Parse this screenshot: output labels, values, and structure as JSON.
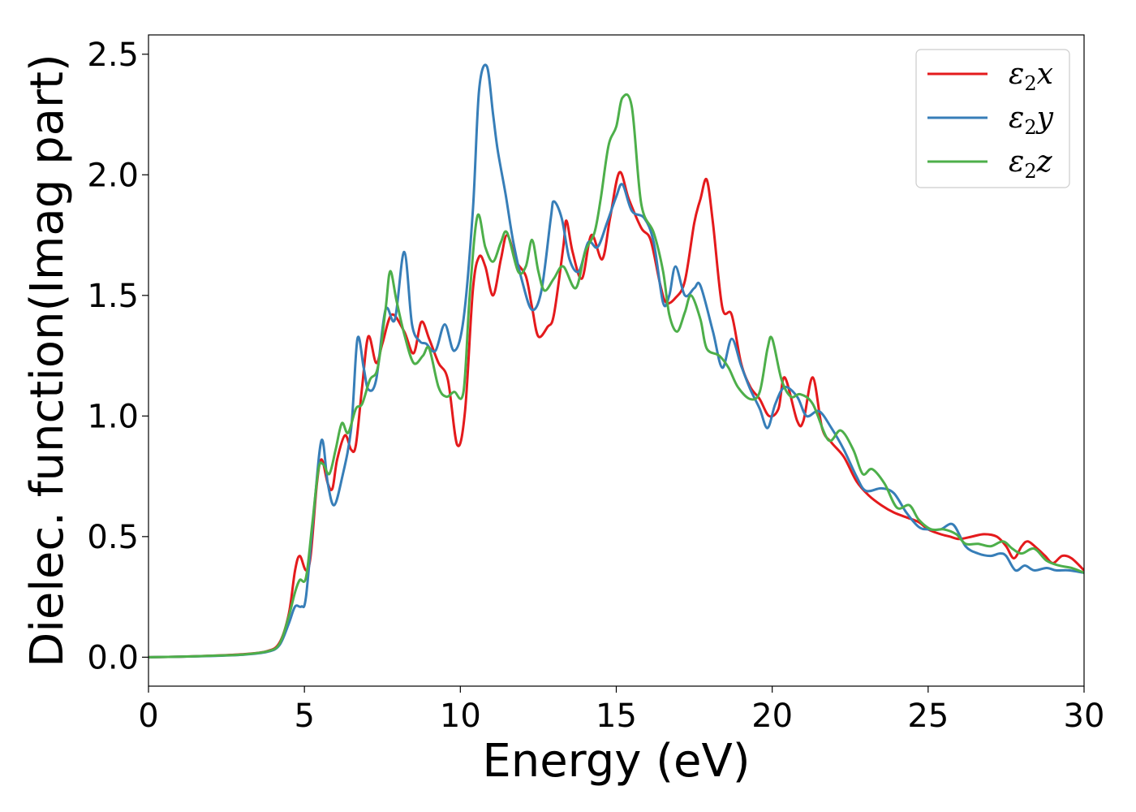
{
  "chart_data": {
    "type": "line",
    "xlabel": "Energy (eV)",
    "ylabel": "Dielec. function(Imag part)",
    "xlim": [
      0,
      30
    ],
    "ylim": [
      -0.12,
      2.58
    ],
    "xticks": [
      0,
      5,
      10,
      15,
      20,
      25,
      30
    ],
    "xtick_labels": [
      "0",
      "5",
      "10",
      "15",
      "20",
      "25",
      "30"
    ],
    "yticks": [
      0.0,
      0.5,
      1.0,
      1.5,
      2.0,
      2.5
    ],
    "ytick_labels": [
      "0.0",
      "0.5",
      "1.0",
      "1.5",
      "2.0",
      "2.5"
    ],
    "grid": false,
    "legend_position": "top-right",
    "series": [
      {
        "name": "ε2x",
        "label_base": "ε",
        "label_sub": "2",
        "label_suffix": "x",
        "color": "#e41a1c",
        "points": [
          [
            0,
            0
          ],
          [
            1,
            0.002
          ],
          [
            2,
            0.006
          ],
          [
            3,
            0.012
          ],
          [
            3.8,
            0.025
          ],
          [
            4.2,
            0.06
          ],
          [
            4.5,
            0.18
          ],
          [
            4.7,
            0.36
          ],
          [
            4.85,
            0.42
          ],
          [
            5.05,
            0.36
          ],
          [
            5.2,
            0.42
          ],
          [
            5.4,
            0.72
          ],
          [
            5.55,
            0.82
          ],
          [
            5.75,
            0.72
          ],
          [
            5.9,
            0.7
          ],
          [
            6.05,
            0.82
          ],
          [
            6.3,
            0.92
          ],
          [
            6.5,
            0.86
          ],
          [
            6.65,
            0.88
          ],
          [
            6.85,
            1.12
          ],
          [
            7.05,
            1.33
          ],
          [
            7.3,
            1.22
          ],
          [
            7.5,
            1.3
          ],
          [
            7.8,
            1.42
          ],
          [
            8.2,
            1.35
          ],
          [
            8.5,
            1.26
          ],
          [
            8.75,
            1.39
          ],
          [
            9.0,
            1.32
          ],
          [
            9.3,
            1.22
          ],
          [
            9.6,
            1.15
          ],
          [
            9.9,
            0.88
          ],
          [
            10.15,
            1.02
          ],
          [
            10.4,
            1.52
          ],
          [
            10.6,
            1.66
          ],
          [
            10.8,
            1.62
          ],
          [
            11.05,
            1.5
          ],
          [
            11.3,
            1.65
          ],
          [
            11.5,
            1.75
          ],
          [
            11.8,
            1.64
          ],
          [
            12.1,
            1.58
          ],
          [
            12.3,
            1.45
          ],
          [
            12.5,
            1.33
          ],
          [
            12.8,
            1.37
          ],
          [
            13.0,
            1.42
          ],
          [
            13.3,
            1.7
          ],
          [
            13.4,
            1.81
          ],
          [
            13.6,
            1.68
          ],
          [
            13.9,
            1.57
          ],
          [
            14.2,
            1.75
          ],
          [
            14.55,
            1.65
          ],
          [
            14.8,
            1.82
          ],
          [
            15.1,
            2.01
          ],
          [
            15.4,
            1.9
          ],
          [
            15.8,
            1.78
          ],
          [
            16.1,
            1.73
          ],
          [
            16.4,
            1.55
          ],
          [
            16.6,
            1.47
          ],
          [
            16.9,
            1.49
          ],
          [
            17.2,
            1.56
          ],
          [
            17.5,
            1.8
          ],
          [
            17.7,
            1.9
          ],
          [
            17.9,
            1.98
          ],
          [
            18.1,
            1.8
          ],
          [
            18.4,
            1.45
          ],
          [
            18.7,
            1.42
          ],
          [
            19.0,
            1.22
          ],
          [
            19.3,
            1.12
          ],
          [
            19.6,
            1.07
          ],
          [
            19.9,
            1.0
          ],
          [
            20.2,
            1.03
          ],
          [
            20.4,
            1.16
          ],
          [
            20.8,
            0.98
          ],
          [
            21.0,
            0.98
          ],
          [
            21.3,
            1.16
          ],
          [
            21.6,
            0.95
          ],
          [
            21.9,
            0.89
          ],
          [
            22.3,
            0.83
          ],
          [
            22.7,
            0.73
          ],
          [
            23.1,
            0.67
          ],
          [
            23.5,
            0.63
          ],
          [
            23.9,
            0.6
          ],
          [
            24.3,
            0.58
          ],
          [
            24.7,
            0.56
          ],
          [
            25.0,
            0.53
          ],
          [
            25.4,
            0.51
          ],
          [
            25.7,
            0.5
          ],
          [
            26.0,
            0.49
          ],
          [
            26.4,
            0.5
          ],
          [
            26.8,
            0.51
          ],
          [
            27.2,
            0.5
          ],
          [
            27.5,
            0.46
          ],
          [
            27.75,
            0.41
          ],
          [
            28.0,
            0.46
          ],
          [
            28.2,
            0.48
          ],
          [
            28.5,
            0.45
          ],
          [
            28.75,
            0.42
          ],
          [
            29.0,
            0.39
          ],
          [
            29.3,
            0.42
          ],
          [
            29.6,
            0.41
          ],
          [
            30,
            0.36
          ]
        ]
      },
      {
        "name": "ε2y",
        "label_base": "ε",
        "label_sub": "2",
        "label_suffix": "y",
        "color": "#377eb8",
        "points": [
          [
            0,
            0
          ],
          [
            1,
            0.002
          ],
          [
            2,
            0.005
          ],
          [
            3,
            0.01
          ],
          [
            3.8,
            0.022
          ],
          [
            4.2,
            0.05
          ],
          [
            4.5,
            0.14
          ],
          [
            4.7,
            0.21
          ],
          [
            4.9,
            0.21
          ],
          [
            5.05,
            0.25
          ],
          [
            5.3,
            0.6
          ],
          [
            5.55,
            0.9
          ],
          [
            5.75,
            0.72
          ],
          [
            5.95,
            0.63
          ],
          [
            6.2,
            0.74
          ],
          [
            6.5,
            0.95
          ],
          [
            6.7,
            1.32
          ],
          [
            6.9,
            1.2
          ],
          [
            7.05,
            1.11
          ],
          [
            7.3,
            1.15
          ],
          [
            7.6,
            1.44
          ],
          [
            7.9,
            1.4
          ],
          [
            8.2,
            1.68
          ],
          [
            8.45,
            1.38
          ],
          [
            8.7,
            1.31
          ],
          [
            8.9,
            1.3
          ],
          [
            9.2,
            1.27
          ],
          [
            9.5,
            1.38
          ],
          [
            9.8,
            1.27
          ],
          [
            10.1,
            1.4
          ],
          [
            10.4,
            1.85
          ],
          [
            10.6,
            2.35
          ],
          [
            10.85,
            2.45
          ],
          [
            11.05,
            2.25
          ],
          [
            11.2,
            2.1
          ],
          [
            11.45,
            1.92
          ],
          [
            11.7,
            1.72
          ],
          [
            12.0,
            1.55
          ],
          [
            12.3,
            1.44
          ],
          [
            12.6,
            1.52
          ],
          [
            12.9,
            1.82
          ],
          [
            13.0,
            1.89
          ],
          [
            13.25,
            1.82
          ],
          [
            13.5,
            1.65
          ],
          [
            13.8,
            1.6
          ],
          [
            14.1,
            1.72
          ],
          [
            14.4,
            1.7
          ],
          [
            14.7,
            1.8
          ],
          [
            15.0,
            1.91
          ],
          [
            15.2,
            1.96
          ],
          [
            15.5,
            1.85
          ],
          [
            15.9,
            1.82
          ],
          [
            16.2,
            1.72
          ],
          [
            16.5,
            1.47
          ],
          [
            16.7,
            1.5
          ],
          [
            16.9,
            1.62
          ],
          [
            17.2,
            1.5
          ],
          [
            17.5,
            1.53
          ],
          [
            17.7,
            1.54
          ],
          [
            18.1,
            1.35
          ],
          [
            18.4,
            1.2
          ],
          [
            18.7,
            1.32
          ],
          [
            19.0,
            1.21
          ],
          [
            19.3,
            1.11
          ],
          [
            19.6,
            1.03
          ],
          [
            19.85,
            0.95
          ],
          [
            20.1,
            1.05
          ],
          [
            20.4,
            1.12
          ],
          [
            20.8,
            1.08
          ],
          [
            21.1,
            1.0
          ],
          [
            21.5,
            1.02
          ],
          [
            21.9,
            0.95
          ],
          [
            22.3,
            0.86
          ],
          [
            22.7,
            0.75
          ],
          [
            23.0,
            0.69
          ],
          [
            23.5,
            0.7
          ],
          [
            23.9,
            0.68
          ],
          [
            24.3,
            0.6
          ],
          [
            24.7,
            0.54
          ],
          [
            25.0,
            0.53
          ],
          [
            25.4,
            0.53
          ],
          [
            25.8,
            0.55
          ],
          [
            26.2,
            0.46
          ],
          [
            26.6,
            0.43
          ],
          [
            27.0,
            0.42
          ],
          [
            27.3,
            0.43
          ],
          [
            27.5,
            0.42
          ],
          [
            27.8,
            0.36
          ],
          [
            28.1,
            0.38
          ],
          [
            28.4,
            0.36
          ],
          [
            28.8,
            0.37
          ],
          [
            29.1,
            0.36
          ],
          [
            29.5,
            0.36
          ],
          [
            30,
            0.35
          ]
        ]
      },
      {
        "name": "ε2z",
        "label_base": "ε",
        "label_sub": "2",
        "label_suffix": "z",
        "color": "#4daf4a",
        "points": [
          [
            0,
            0
          ],
          [
            1,
            0.002
          ],
          [
            2,
            0.006
          ],
          [
            3,
            0.011
          ],
          [
            3.8,
            0.024
          ],
          [
            4.2,
            0.055
          ],
          [
            4.5,
            0.17
          ],
          [
            4.7,
            0.27
          ],
          [
            4.85,
            0.32
          ],
          [
            5.05,
            0.33
          ],
          [
            5.25,
            0.55
          ],
          [
            5.45,
            0.78
          ],
          [
            5.6,
            0.8
          ],
          [
            5.8,
            0.76
          ],
          [
            6.0,
            0.86
          ],
          [
            6.2,
            0.97
          ],
          [
            6.4,
            0.93
          ],
          [
            6.65,
            1.03
          ],
          [
            6.85,
            1.05
          ],
          [
            7.1,
            1.15
          ],
          [
            7.35,
            1.2
          ],
          [
            7.6,
            1.44
          ],
          [
            7.75,
            1.6
          ],
          [
            7.95,
            1.48
          ],
          [
            8.2,
            1.34
          ],
          [
            8.5,
            1.22
          ],
          [
            8.8,
            1.25
          ],
          [
            9.0,
            1.28
          ],
          [
            9.3,
            1.12
          ],
          [
            9.55,
            1.08
          ],
          [
            9.8,
            1.1
          ],
          [
            10.1,
            1.1
          ],
          [
            10.3,
            1.5
          ],
          [
            10.55,
            1.83
          ],
          [
            10.8,
            1.7
          ],
          [
            11.05,
            1.64
          ],
          [
            11.3,
            1.72
          ],
          [
            11.5,
            1.76
          ],
          [
            11.85,
            1.6
          ],
          [
            12.1,
            1.62
          ],
          [
            12.3,
            1.73
          ],
          [
            12.5,
            1.6
          ],
          [
            12.7,
            1.52
          ],
          [
            13.0,
            1.57
          ],
          [
            13.3,
            1.62
          ],
          [
            13.7,
            1.53
          ],
          [
            14.0,
            1.68
          ],
          [
            14.3,
            1.76
          ],
          [
            14.5,
            1.9
          ],
          [
            14.75,
            2.12
          ],
          [
            15.0,
            2.2
          ],
          [
            15.2,
            2.32
          ],
          [
            15.5,
            2.28
          ],
          [
            15.8,
            1.88
          ],
          [
            16.2,
            1.76
          ],
          [
            16.5,
            1.6
          ],
          [
            16.7,
            1.42
          ],
          [
            16.95,
            1.35
          ],
          [
            17.2,
            1.43
          ],
          [
            17.4,
            1.5
          ],
          [
            17.7,
            1.4
          ],
          [
            17.9,
            1.28
          ],
          [
            18.3,
            1.25
          ],
          [
            18.6,
            1.2
          ],
          [
            18.9,
            1.12
          ],
          [
            19.3,
            1.07
          ],
          [
            19.6,
            1.1
          ],
          [
            19.85,
            1.28
          ],
          [
            20.0,
            1.32
          ],
          [
            20.3,
            1.15
          ],
          [
            20.6,
            1.08
          ],
          [
            20.9,
            1.09
          ],
          [
            21.3,
            1.05
          ],
          [
            21.8,
            0.9
          ],
          [
            22.2,
            0.94
          ],
          [
            22.6,
            0.86
          ],
          [
            22.9,
            0.76
          ],
          [
            23.2,
            0.78
          ],
          [
            23.6,
            0.72
          ],
          [
            24.0,
            0.62
          ],
          [
            24.4,
            0.63
          ],
          [
            24.7,
            0.57
          ],
          [
            25.1,
            0.53
          ],
          [
            25.5,
            0.53
          ],
          [
            25.9,
            0.51
          ],
          [
            26.2,
            0.47
          ],
          [
            26.6,
            0.47
          ],
          [
            27.0,
            0.46
          ],
          [
            27.4,
            0.48
          ],
          [
            27.7,
            0.45
          ],
          [
            28.0,
            0.43
          ],
          [
            28.4,
            0.45
          ],
          [
            28.8,
            0.4
          ],
          [
            29.2,
            0.38
          ],
          [
            29.6,
            0.37
          ],
          [
            30,
            0.35
          ]
        ]
      }
    ]
  }
}
